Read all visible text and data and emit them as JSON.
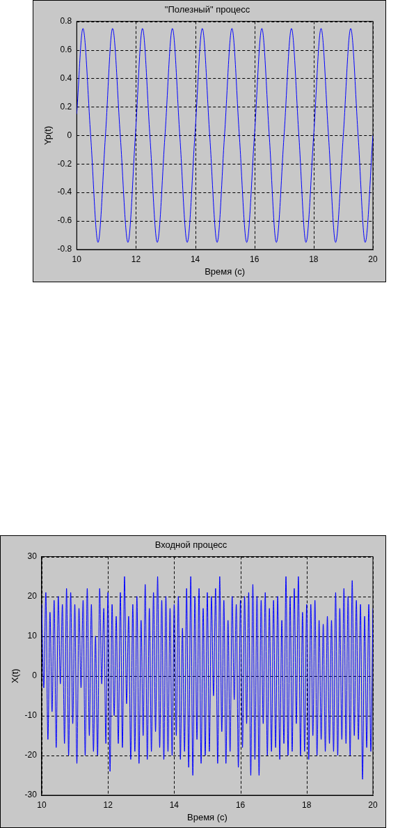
{
  "chart_data": [
    {
      "type": "line",
      "title": "\"Полезный\" процесс",
      "xlabel": "Время (с)",
      "ylabel": "Yp(t)",
      "xlim": [
        10,
        20
      ],
      "xticks": [
        10,
        12,
        14,
        16,
        18,
        20
      ],
      "ylim": [
        -0.8,
        0.8
      ],
      "yticks": [
        -0.8,
        -0.6,
        -0.4,
        -0.2,
        0,
        0.2,
        0.4,
        0.6,
        0.8
      ],
      "grid": true,
      "legend": false,
      "series": [
        {
          "color": "#0000ff",
          "x": [
            10,
            10.21,
            10.47,
            10.72,
            10.97,
            11.21,
            11.47,
            11.73,
            11.98,
            12.22,
            12.47,
            12.72,
            12.98,
            13.23,
            13.48,
            13.73,
            13.99,
            14.24,
            14.49,
            14.74,
            14.99,
            15.24,
            15.49,
            15.74,
            16.0,
            16.25,
            16.5,
            16.74,
            17.0,
            17.25,
            17.5,
            17.74,
            18.0,
            18.25,
            18.5,
            18.74,
            19.0,
            19.25,
            19.5,
            19.74,
            20.0
          ],
          "values": [
            0.15,
            0.75,
            0,
            -0.75,
            0,
            0.75,
            0,
            -0.75,
            0,
            0.75,
            0,
            -0.75,
            0,
            0.75,
            0,
            -0.75,
            0,
            0.75,
            0,
            -0.75,
            0,
            0.75,
            0,
            -0.75,
            0,
            0.75,
            0,
            -0.75,
            0,
            0.75,
            0,
            -0.75,
            0,
            0.75,
            0,
            -0.75,
            0,
            0.75,
            0,
            -0.75,
            0
          ]
        }
      ]
    },
    {
      "type": "line",
      "title": "Входной процесс",
      "xlabel": "Время (с)",
      "ylabel": "X(t)",
      "xlim": [
        10,
        20
      ],
      "xticks": [
        10,
        12,
        14,
        16,
        18,
        20
      ],
      "ylim": [
        -30,
        30
      ],
      "yticks": [
        -30,
        -20,
        -10,
        0,
        10,
        20,
        30
      ],
      "grid": true,
      "legend": false,
      "series": [
        {
          "color": "#0000ff",
          "x": [
            10,
            10.0625,
            10.125,
            10.1875,
            10.25,
            10.3125,
            10.375,
            10.4375,
            10.5,
            10.5625,
            10.625,
            10.6875,
            10.75,
            10.8125,
            10.875,
            10.9375,
            11,
            11.0625,
            11.125,
            11.1875,
            11.25,
            11.3125,
            11.375,
            11.4375,
            11.5,
            11.5625,
            11.625,
            11.6875,
            11.75,
            11.8125,
            11.875,
            11.9375,
            12,
            12.0625,
            12.125,
            12.1875,
            12.25,
            12.3125,
            12.375,
            12.4375,
            12.5,
            12.5625,
            12.625,
            12.6875,
            12.75,
            12.8125,
            12.875,
            12.9375,
            13,
            13.0625,
            13.125,
            13.1875,
            13.25,
            13.3125,
            13.375,
            13.4375,
            13.5,
            13.5625,
            13.625,
            13.6875,
            13.75,
            13.8125,
            13.875,
            13.9375,
            14,
            14.0625,
            14.125,
            14.1875,
            14.25,
            14.3125,
            14.375,
            14.4375,
            14.5,
            14.5625,
            14.625,
            14.6875,
            14.75,
            14.8125,
            14.875,
            14.9375,
            15,
            15.0625,
            15.125,
            15.1875,
            15.25,
            15.3125,
            15.375,
            15.4375,
            15.5,
            15.5625,
            15.625,
            15.6875,
            15.75,
            15.8125,
            15.875,
            15.9375,
            16,
            16.0625,
            16.125,
            16.1875,
            16.25,
            16.3125,
            16.375,
            16.4375,
            16.5,
            16.5625,
            16.625,
            16.6875,
            16.75,
            16.8125,
            16.875,
            16.9375,
            17,
            17.0625,
            17.125,
            17.1875,
            17.25,
            17.3125,
            17.375,
            17.4375,
            17.5,
            17.5625,
            17.625,
            17.6875,
            17.75,
            17.8125,
            17.875,
            17.9375,
            18,
            18.0625,
            18.125,
            18.1875,
            18.25,
            18.3125,
            18.375,
            18.4375,
            18.5,
            18.5625,
            18.625,
            18.6875,
            18.75,
            18.8125,
            18.875,
            18.9375,
            19,
            19.0625,
            19.125,
            19.1875,
            19.25,
            19.3125,
            19.375,
            19.4375,
            19.5,
            19.5625,
            19.625,
            19.6875,
            19.75,
            19.8125,
            19.875,
            19.9375,
            20
          ],
          "values": [
            18,
            -3,
            21,
            -16,
            16,
            -9,
            19,
            -18,
            20,
            -2,
            18,
            -17,
            22,
            -20,
            21,
            -12,
            18,
            -22,
            17,
            -3,
            19,
            -20,
            22,
            -15,
            18,
            -19,
            10,
            -20,
            22,
            -2,
            17,
            -17,
            21,
            -24,
            18,
            -10,
            15,
            -17,
            21,
            -18,
            25,
            -7,
            15,
            -21,
            18,
            -19,
            20,
            -22,
            14,
            -15,
            23,
            -21,
            17,
            -19,
            21,
            -14,
            25,
            -18,
            19,
            -21,
            20,
            -19,
            17,
            -20,
            18,
            -15,
            20,
            -21,
            12,
            -19,
            22,
            -23,
            25,
            -25,
            20,
            -16,
            22,
            -22,
            17,
            -20,
            21,
            -19,
            20,
            -5,
            22,
            -22,
            25,
            -14,
            19,
            -22,
            14,
            -19,
            20,
            -6,
            18,
            -23,
            19,
            -18,
            20,
            -12,
            21,
            -25,
            23,
            -21,
            20,
            -25,
            19,
            -12,
            21,
            -20,
            17,
            -19,
            19,
            -18,
            20,
            -21,
            14,
            -17,
            25,
            -20,
            20,
            -19,
            22,
            -12,
            25,
            -20,
            16,
            -19,
            18,
            -21,
            18,
            -15,
            19,
            -20,
            14,
            -16,
            13,
            -19,
            15,
            -17,
            14,
            -19,
            21,
            -20,
            17,
            -16,
            22,
            -17,
            20,
            -20,
            24,
            -15,
            19,
            -16,
            18,
            -26,
            15,
            -18,
            18,
            -19,
            17
          ]
        }
      ]
    }
  ]
}
